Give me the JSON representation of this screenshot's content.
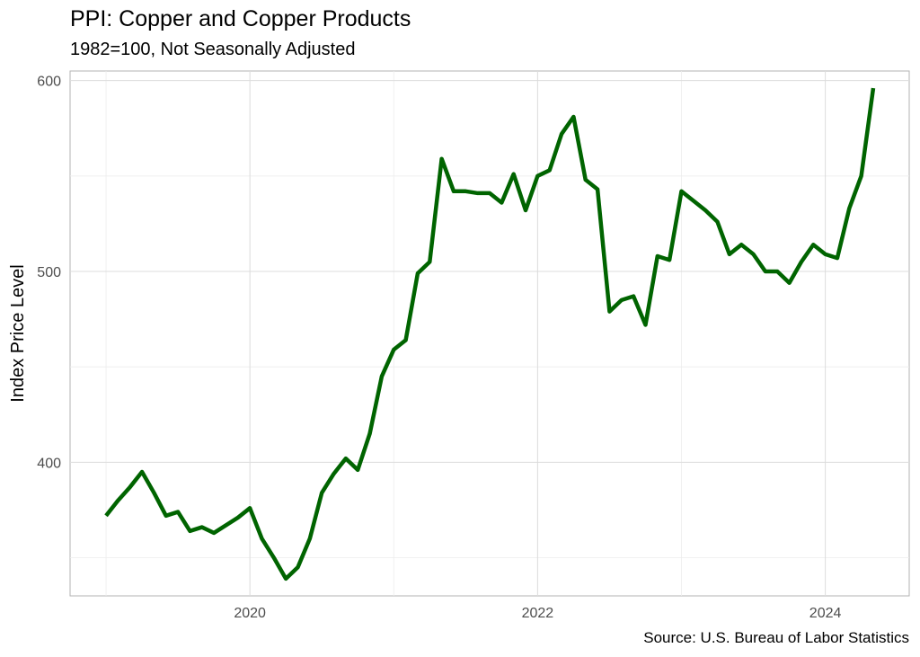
{
  "chart_data": {
    "type": "line",
    "title": "PPI: Copper and Copper Products",
    "subtitle": "1982=100, Not Seasonally Adjusted",
    "caption": "Source: U.S. Bureau of Labor Statistics",
    "xlabel": "",
    "ylabel": "Index Price Level",
    "x_ticks": [
      "2020",
      "2022",
      "2024"
    ],
    "y_ticks": [
      400,
      500,
      600
    ],
    "ylim": [
      330,
      605
    ],
    "xlim": [
      "2018-10",
      "2024-08"
    ],
    "grid": true,
    "line_color": "#006400",
    "x": [
      "2019-01",
      "2019-02",
      "2019-03",
      "2019-04",
      "2019-05",
      "2019-06",
      "2019-07",
      "2019-08",
      "2019-09",
      "2019-10",
      "2019-11",
      "2019-12",
      "2020-01",
      "2020-02",
      "2020-03",
      "2020-04",
      "2020-05",
      "2020-06",
      "2020-07",
      "2020-08",
      "2020-09",
      "2020-10",
      "2020-11",
      "2020-12",
      "2021-01",
      "2021-02",
      "2021-03",
      "2021-04",
      "2021-05",
      "2021-06",
      "2021-07",
      "2021-08",
      "2021-09",
      "2021-10",
      "2021-11",
      "2021-12",
      "2022-01",
      "2022-02",
      "2022-03",
      "2022-04",
      "2022-05",
      "2022-06",
      "2022-07",
      "2022-08",
      "2022-09",
      "2022-10",
      "2022-11",
      "2022-12",
      "2023-01",
      "2023-02",
      "2023-03",
      "2023-04",
      "2023-05",
      "2023-06",
      "2023-07",
      "2023-08",
      "2023-09",
      "2023-10",
      "2023-11",
      "2023-12",
      "2024-01",
      "2024-02",
      "2024-03",
      "2024-04",
      "2024-05"
    ],
    "series": [
      {
        "values": [
          372,
          380,
          387,
          395,
          384,
          372,
          374,
          364,
          366,
          363,
          367,
          371,
          376,
          360,
          350,
          339,
          345,
          360,
          384,
          394,
          402,
          396,
          415,
          445,
          459,
          464,
          499,
          505,
          559,
          542,
          542,
          541,
          541,
          536,
          551,
          532,
          550,
          553,
          572,
          581,
          548,
          543,
          479,
          485,
          487,
          472,
          508,
          506,
          542,
          537,
          532,
          526,
          509,
          514,
          509,
          500,
          500,
          494,
          505,
          514,
          509,
          507,
          533,
          550,
          596
        ]
      }
    ]
  }
}
